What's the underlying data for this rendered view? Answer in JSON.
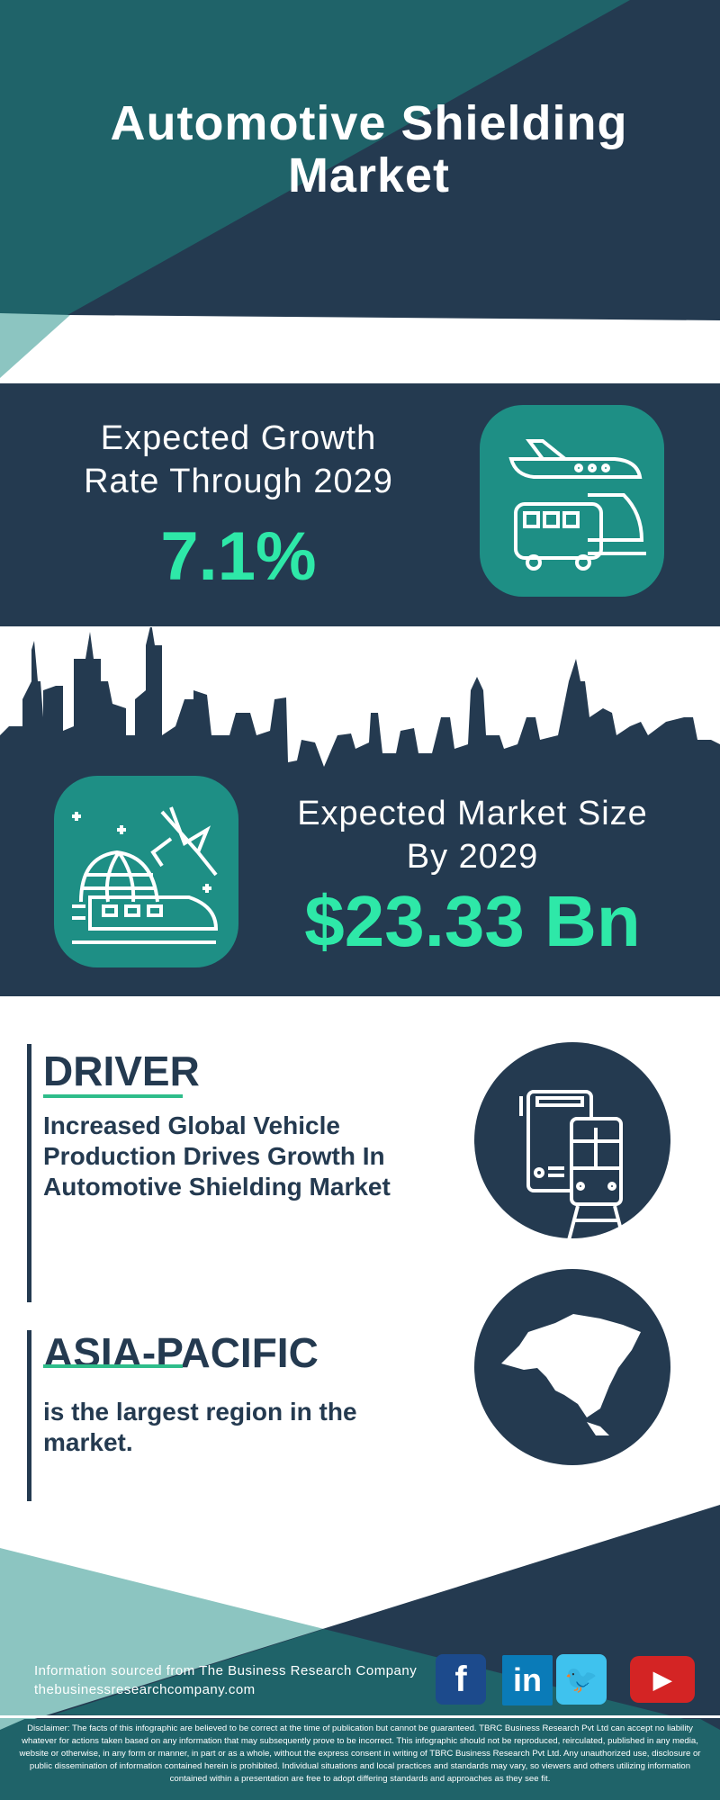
{
  "header": {
    "title_line1": "Automotive Shielding",
    "title_line2": "Market"
  },
  "growth": {
    "label_line1": "Expected Growth",
    "label_line2": "Rate Through 2029",
    "value": "7.1%",
    "icon": "plane-bus-train-icon"
  },
  "market_size": {
    "label_line1": "Expected Market Size",
    "label_line2": "By 2029",
    "value": "$23.33 Bn",
    "icon": "globe-plane-train-icon"
  },
  "driver": {
    "heading": "DRIVER",
    "text": "Increased Global Vehicle Production Drives Growth In Automotive Shielding Market",
    "icon": "bus-train-icon"
  },
  "region": {
    "heading": "ASIA-PACIFIC",
    "text": "is the largest region in the market.",
    "icon": "asia-map-icon"
  },
  "footer": {
    "source": "Information sourced from The Business Research Company",
    "url": "thebusinessresearchcompany.com",
    "social": [
      {
        "name": "facebook",
        "glyph": "f"
      },
      {
        "name": "linkedin",
        "glyph": "in"
      },
      {
        "name": "twitter",
        "glyph": "🐦"
      },
      {
        "name": "youtube",
        "glyph": "▶"
      }
    ],
    "disclaimer": "Disclaimer: The facts of this infographic are believed to be correct at the time of publication but cannot be guaranteed. TBRC Business Research Pvt Ltd can accept no liability whatever for actions taken based on any information that may subsequently prove to be incorrect. This infographic should not be reproduced, reirculated, published in any media, website or otherwise, in any form or manner, in part or as a whole, without the express consent in writing of TBRC Business Research Pvt Ltd. Any unauthorized use, disclosure or public dissemination of information contained herein is prohibited. Individual situations and local practices and standards may vary, so viewers and others utilizing information contained within a presentation are free to adopt differing standards and approaches as they see fit."
  },
  "colors": {
    "navy": "#243a50",
    "teal": "#1f6369",
    "light_teal": "#8cc5c1",
    "accent_green": "#2ee8a8",
    "icon_box": "#1e8f85"
  }
}
